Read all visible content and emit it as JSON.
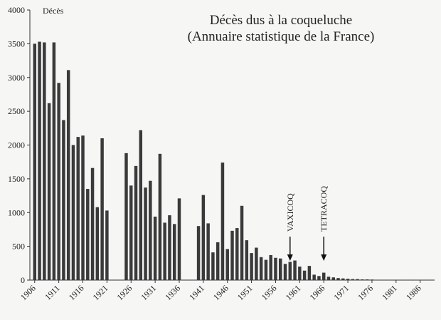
{
  "chart_data": {
    "type": "bar",
    "title_lines": [
      "Décès dus à la coqueluche",
      "(Annuaire statistique de la France)"
    ],
    "ylabel": "Décès",
    "x": [
      1906,
      1907,
      1908,
      1909,
      1910,
      1911,
      1912,
      1913,
      1914,
      1915,
      1916,
      1917,
      1918,
      1919,
      1920,
      1921,
      1922,
      1923,
      1924,
      1925,
      1926,
      1927,
      1928,
      1929,
      1930,
      1931,
      1932,
      1933,
      1934,
      1935,
      1936,
      1937,
      1938,
      1939,
      1940,
      1941,
      1942,
      1943,
      1944,
      1945,
      1946,
      1947,
      1948,
      1949,
      1950,
      1951,
      1952,
      1953,
      1954,
      1955,
      1956,
      1957,
      1958,
      1959,
      1960,
      1961,
      1962,
      1963,
      1964,
      1965,
      1966,
      1967,
      1968,
      1969,
      1970,
      1971,
      1972,
      1973,
      1974,
      1975,
      1976,
      1977,
      1978,
      1979,
      1980,
      1981,
      1982,
      1983,
      1984,
      1985,
      1986,
      1987,
      1988
    ],
    "values": [
      3500,
      3530,
      3520,
      2620,
      3520,
      2920,
      2370,
      3110,
      2000,
      2120,
      2140,
      1350,
      1660,
      1080,
      2100,
      1030,
      null,
      null,
      null,
      1880,
      1400,
      1690,
      2220,
      1370,
      1470,
      940,
      1870,
      850,
      960,
      830,
      1210,
      null,
      null,
      null,
      800,
      1260,
      840,
      410,
      560,
      1740,
      460,
      730,
      770,
      1100,
      590,
      400,
      480,
      340,
      300,
      370,
      330,
      320,
      240,
      270,
      290,
      200,
      140,
      210,
      80,
      60,
      110,
      50,
      40,
      30,
      25,
      20,
      15,
      15,
      10,
      10,
      8,
      5,
      5,
      5,
      3,
      3,
      3,
      2,
      2,
      1,
      1,
      1,
      1
    ],
    "color": "#3a3a3a",
    "xlim": [
      1905,
      1989
    ],
    "xticks": [
      1906,
      1911,
      1916,
      1921,
      1926,
      1931,
      1936,
      1941,
      1946,
      1951,
      1956,
      1961,
      1966,
      1971,
      1976,
      1981,
      1986
    ],
    "ylim": [
      0,
      4000
    ],
    "yticks": [
      0,
      500,
      1000,
      1500,
      2000,
      2500,
      3000,
      3500,
      4000
    ],
    "annotations": [
      {
        "text": "VAXICOQ",
        "x": 1959
      },
      {
        "text": "TETRACOQ",
        "x": 1966
      }
    ]
  }
}
